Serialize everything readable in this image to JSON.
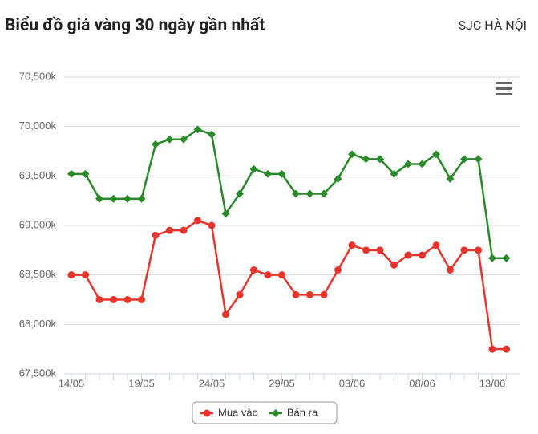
{
  "title": "Biểu đồ giá vàng 30 ngày gần nhất",
  "subtitle": "SJC HÀ NỘI",
  "chart_data": {
    "type": "line",
    "categories": [
      "14/05",
      null,
      null,
      null,
      null,
      "19/05",
      null,
      null,
      null,
      null,
      "24/05",
      null,
      null,
      null,
      null,
      "29/05",
      null,
      null,
      null,
      null,
      "03/06",
      null,
      null,
      null,
      null,
      "08/06",
      null,
      null,
      null,
      null,
      "13/06",
      null
    ],
    "series": [
      {
        "name": "Mua vào",
        "color": "#e8352c",
        "marker": "circle",
        "values": [
          68500,
          68500,
          68250,
          68250,
          68250,
          68250,
          68900,
          68950,
          68950,
          69050,
          69000,
          68100,
          68300,
          68550,
          68500,
          68500,
          68300,
          68300,
          68300,
          68550,
          68800,
          68750,
          68750,
          68600,
          68700,
          68700,
          68800,
          68550,
          68750,
          68750,
          67750,
          67750
        ]
      },
      {
        "name": "Bán ra",
        "color": "#2a8a2a",
        "marker": "diamond",
        "values": [
          69520,
          69520,
          69270,
          69270,
          69270,
          69270,
          69820,
          69870,
          69870,
          69970,
          69920,
          69120,
          69320,
          69570,
          69520,
          69520,
          69320,
          69320,
          69320,
          69470,
          69720,
          69670,
          69670,
          69520,
          69620,
          69620,
          69720,
          69470,
          69670,
          69670,
          68670,
          68670
        ]
      }
    ],
    "ylim": [
      67500,
      70500
    ],
    "yticks": [
      {
        "value": 67500,
        "label": "67,500k"
      },
      {
        "value": 68000,
        "label": "68,000k"
      },
      {
        "value": 68500,
        "label": "68,500k"
      },
      {
        "value": 69000,
        "label": "69,000k"
      },
      {
        "value": 69500,
        "label": "69,500k"
      },
      {
        "value": 70000,
        "label": "70,000k"
      },
      {
        "value": 70500,
        "label": "70,500k"
      }
    ],
    "grid": true,
    "legend": "bottom"
  }
}
